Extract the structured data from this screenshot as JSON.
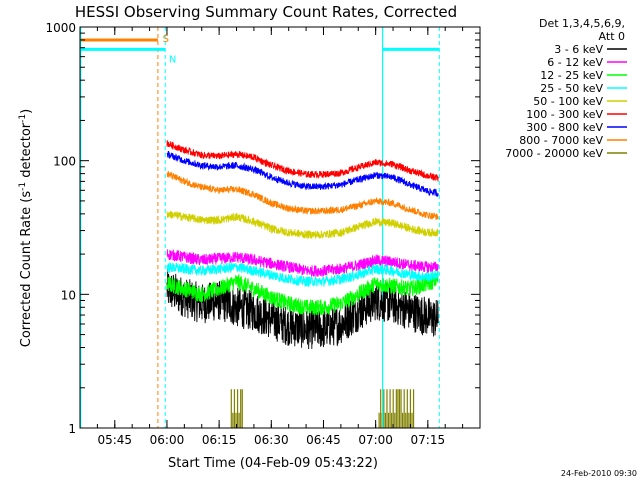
{
  "chart_data": {
    "type": "line",
    "title": "HESSI Observing Summary Count Rates, Corrected",
    "xlabel": "Start Time (04-Feb-09 05:43:22)",
    "ylabel_main": "Corrected Count Rate (s",
    "ylabel_sup1": "-1",
    "ylabel_mid": " detector",
    "ylabel_sup2": "-1",
    "ylabel_end": ")",
    "yscale": "log",
    "ylim": [
      1,
      1000
    ],
    "xlim_minutes": [
      5,
      120
    ],
    "x_ticks": [
      {
        "m": 15,
        "label": "05:45"
      },
      {
        "m": 30,
        "label": "06:00"
      },
      {
        "m": 45,
        "label": "06:15"
      },
      {
        "m": 60,
        "label": "06:30"
      },
      {
        "m": 75,
        "label": "06:45"
      },
      {
        "m": 90,
        "label": "07:00"
      },
      {
        "m": 105,
        "label": "07:15"
      }
    ],
    "y_ticks": [
      {
        "v": 1,
        "label": "1"
      },
      {
        "v": 10,
        "label": "10"
      },
      {
        "v": 100,
        "label": "100"
      },
      {
        "v": 1000,
        "label": "1000"
      }
    ],
    "legend_title_1": "Det 1,3,4,5,6,9,",
    "legend_title_2": "Att 0",
    "series": [
      {
        "name": "3 - 6 keV",
        "color": "#000000",
        "noise": 0.35,
        "x": [
          30,
          35,
          40,
          45,
          50,
          55,
          60,
          65,
          70,
          75,
          80,
          85,
          90,
          95,
          100,
          105,
          108
        ],
        "y": [
          11,
          9.5,
          8.5,
          9,
          8,
          7.5,
          6.5,
          5.8,
          5.5,
          5.5,
          6,
          7.5,
          9,
          8.5,
          7.5,
          6.8,
          6.5
        ]
      },
      {
        "name": "6 - 12 keV",
        "color": "#ff00ff",
        "noise": 0.1,
        "x": [
          30,
          35,
          40,
          45,
          50,
          55,
          60,
          65,
          70,
          75,
          80,
          85,
          90,
          95,
          100,
          105,
          108
        ],
        "y": [
          20,
          19,
          18,
          18.5,
          19,
          18,
          17,
          16,
          15,
          15,
          15.5,
          16.5,
          18,
          17.5,
          16.5,
          16,
          16
        ]
      },
      {
        "name": "12 - 25 keV",
        "color": "#00ff00",
        "noise": 0.14,
        "x": [
          30,
          35,
          40,
          45,
          50,
          55,
          60,
          65,
          70,
          75,
          80,
          85,
          90,
          95,
          100,
          105,
          108
        ],
        "y": [
          12,
          11,
          10,
          11,
          12.5,
          11,
          9.5,
          8.5,
          8,
          8,
          8.5,
          10,
          12,
          11.5,
          11,
          12,
          13
        ]
      },
      {
        "name": "25 - 50 keV",
        "color": "#00ffff",
        "noise": 0.09,
        "x": [
          30,
          35,
          40,
          45,
          50,
          55,
          60,
          65,
          70,
          75,
          80,
          85,
          90,
          95,
          100,
          105,
          108
        ],
        "y": [
          16,
          15.5,
          15,
          15.5,
          16,
          15,
          14,
          13,
          12.5,
          12.5,
          13,
          14,
          15.5,
          15,
          14,
          13.5,
          14
        ]
      },
      {
        "name": "50 - 100 keV",
        "color": "#d0d000",
        "noise": 0.07,
        "x": [
          30,
          35,
          40,
          45,
          50,
          55,
          60,
          65,
          70,
          75,
          80,
          85,
          90,
          95,
          100,
          105,
          108
        ],
        "y": [
          40,
          38,
          36,
          36,
          38,
          35,
          31,
          29,
          28,
          28,
          29,
          32,
          35,
          34,
          31,
          29,
          29
        ]
      },
      {
        "name": "100 - 300 keV",
        "color": "#ff0000",
        "noise": 0.06,
        "x": [
          30,
          35,
          40,
          45,
          50,
          55,
          60,
          65,
          70,
          75,
          80,
          85,
          90,
          95,
          100,
          105,
          108
        ],
        "y": [
          135,
          120,
          110,
          108,
          112,
          106,
          92,
          84,
          79,
          79,
          81,
          89,
          97,
          94,
          84,
          77,
          74
        ]
      },
      {
        "name": "300 - 800 keV",
        "color": "#0000ff",
        "noise": 0.06,
        "x": [
          30,
          35,
          40,
          45,
          50,
          55,
          60,
          65,
          70,
          75,
          80,
          85,
          90,
          95,
          100,
          105,
          108
        ],
        "y": [
          112,
          100,
          92,
          90,
          92,
          86,
          75,
          68,
          64,
          64,
          66,
          72,
          78,
          75,
          66,
          59,
          57
        ]
      },
      {
        "name": "800 - 7000 keV",
        "color": "#ff8000",
        "noise": 0.06,
        "x": [
          30,
          35,
          40,
          45,
          50,
          55,
          60,
          65,
          70,
          75,
          80,
          85,
          90,
          95,
          100,
          105,
          108
        ],
        "y": [
          80,
          70,
          63,
          60,
          61,
          56,
          48,
          44,
          42,
          42,
          43,
          46,
          50,
          48,
          43,
          39,
          38
        ]
      },
      {
        "name": "7000 - 20000 keV",
        "color": "#808000",
        "noise": 0,
        "x": [],
        "y": []
      }
    ],
    "flags": [
      {
        "label": "S",
        "color": "#ff8000",
        "y_value": 800
      },
      {
        "label": "N",
        "color": "#00ffff",
        "y_value": 680
      }
    ],
    "footer_timestamp": "24-Feb-2010 09:30"
  }
}
